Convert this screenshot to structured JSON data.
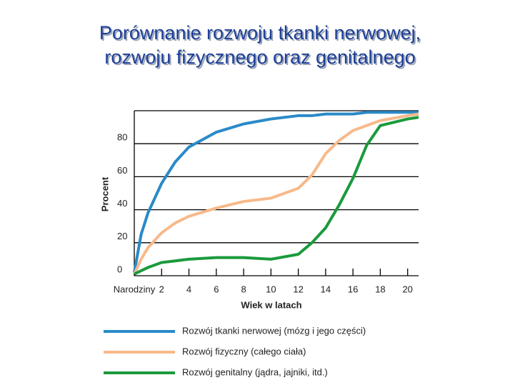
{
  "chart_data": {
    "type": "line",
    "title": [
      "Porównanie rozwoju tkanki nerwowej,",
      "rozwoju fizycznego oraz genitalnego"
    ],
    "y_label": "Procent",
    "x_label": "Wiek w latach",
    "x": [
      0,
      0.5,
      1,
      2,
      3,
      4,
      6,
      8,
      10,
      12,
      13,
      14,
      15,
      16,
      17,
      18,
      20,
      20.8
    ],
    "series": [
      {
        "name": "Rozwój tkanki nerwowej (mózg i jego części)",
        "color": "#2a8ac8",
        "values": [
          2,
          25,
          38,
          56,
          69,
          78,
          87,
          92,
          95,
          97,
          97,
          98,
          98,
          98,
          99,
          99,
          99,
          99
        ]
      },
      {
        "name": "Rozwój fizyczny (całego ciała)",
        "color": "#f7b98a",
        "values": [
          1,
          10,
          17,
          26,
          32,
          36,
          41,
          45,
          47,
          53,
          61,
          74,
          82,
          88,
          91,
          94,
          97,
          98
        ]
      },
      {
        "name": "Rozwój genitalny (jądra, jajniki, itd.)",
        "color": "#1a9a3c",
        "values": [
          1,
          3,
          5,
          8,
          9,
          10,
          11,
          11,
          10,
          13,
          20,
          29,
          43,
          59,
          79,
          91,
          95,
          96
        ]
      }
    ],
    "xlim": [
      0,
      20.8
    ],
    "ylim": [
      0,
      100
    ],
    "xticks": [
      {
        "value": 0,
        "label": "Narodziny"
      },
      2,
      4,
      6,
      8,
      10,
      12,
      14,
      16,
      18,
      20
    ],
    "yticks": [
      0,
      20,
      40,
      60,
      80
    ],
    "grid": true
  }
}
